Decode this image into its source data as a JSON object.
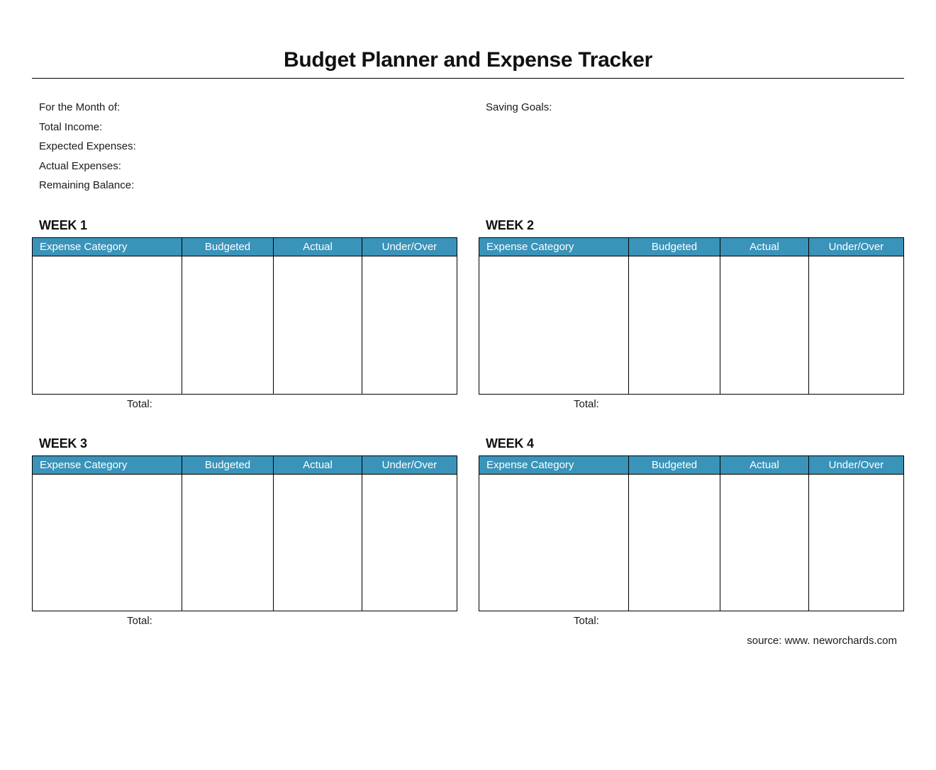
{
  "document": {
    "title": "Budget Planner and Expense Tracker",
    "source_credit": "source: www. neworchards.com"
  },
  "summary": {
    "fields": [
      {
        "label": "For the Month of:"
      },
      {
        "label": "Total Income:"
      },
      {
        "label": "Expected Expenses:"
      },
      {
        "label": "Actual Expenses:"
      },
      {
        "label": "Remaining Balance:"
      }
    ],
    "saving_goals_label": "Saving Goals:"
  },
  "table": {
    "columns": [
      "Expense Category",
      "Budgeted",
      "Actual",
      "Under/Over"
    ],
    "total_label": "Total:"
  },
  "weeks": [
    {
      "name": "WEEK 1"
    },
    {
      "name": "WEEK 2"
    },
    {
      "name": "WEEK 3"
    },
    {
      "name": "WEEK 4"
    }
  ],
  "colors": {
    "header_bg": "#3A93B8",
    "header_text": "#FFFFFF",
    "border": "#000000"
  }
}
